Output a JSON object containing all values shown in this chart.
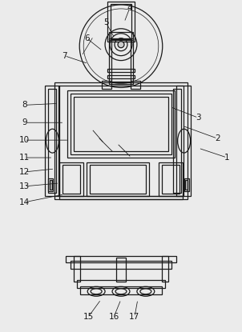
{
  "bg_color": "#ebebeb",
  "line_color": "#1a1a1a",
  "figsize": [
    3.02,
    4.15
  ],
  "dpi": 100,
  "labels_pos": {
    "1": [
      284,
      218,
      248,
      230
    ],
    "2": [
      272,
      242,
      228,
      258
    ],
    "3": [
      248,
      268,
      212,
      282
    ],
    "4": [
      162,
      406,
      155,
      388
    ],
    "5": [
      132,
      388,
      143,
      368
    ],
    "6": [
      108,
      368,
      128,
      352
    ],
    "7": [
      80,
      346,
      110,
      336
    ],
    "8": [
      30,
      284,
      72,
      286
    ],
    "9": [
      30,
      262,
      80,
      262
    ],
    "10": [
      30,
      240,
      86,
      240
    ],
    "11": [
      30,
      218,
      66,
      218
    ],
    "12": [
      30,
      200,
      68,
      204
    ],
    "13": [
      30,
      182,
      74,
      186
    ],
    "14": [
      30,
      162,
      80,
      172
    ],
    "15": [
      110,
      18,
      126,
      40
    ],
    "16": [
      142,
      18,
      151,
      40
    ],
    "17": [
      168,
      18,
      172,
      40
    ]
  }
}
